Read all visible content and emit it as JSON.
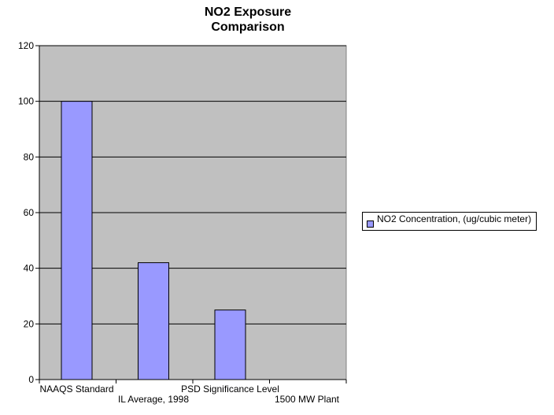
{
  "chart_data": {
    "type": "bar",
    "title": "NO2 Exposure Comparison",
    "title_lines": [
      "NO2 Exposure",
      "Comparison"
    ],
    "categories": [
      "NAAQS Standard",
      "IL Average, 1998",
      "PSD Significance Level",
      "1500 MW Plant"
    ],
    "series": [
      {
        "name": "NO2 Concentration, (ug/cubic meter)",
        "values": [
          100,
          42,
          25,
          0
        ],
        "color": "#9999ff"
      }
    ],
    "ylim": [
      0,
      120
    ],
    "yticks": [
      0,
      20,
      40,
      60,
      80,
      100,
      120
    ],
    "plot_background": "#c0c0c0",
    "grid": true,
    "legend_position": "right"
  }
}
